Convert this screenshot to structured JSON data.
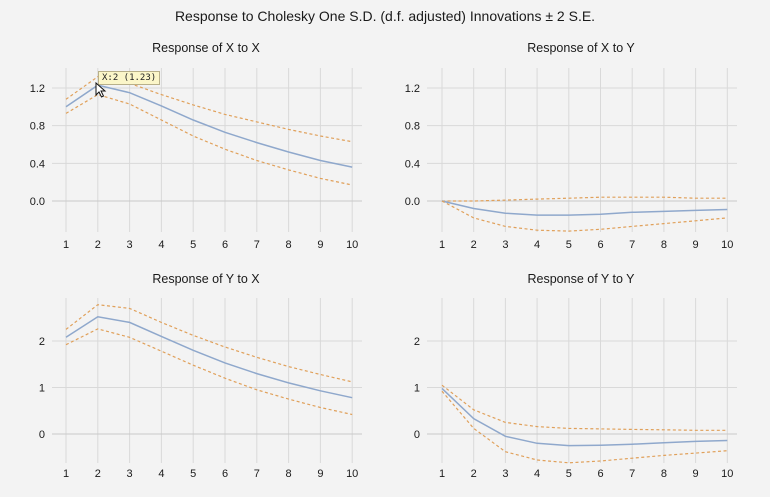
{
  "title": "Response to Cholesky One S.D. (d.f. adjusted) Innovations ± 2 S.E.",
  "tooltip": "X:2 (1.23)",
  "colors": {
    "response": "#8fa8cc",
    "band": "#e0a05a",
    "grid": "#d9d9d9"
  },
  "chart_data": [
    {
      "type": "line",
      "title": "Response of X to X",
      "x": [
        1,
        2,
        3,
        4,
        5,
        6,
        7,
        8,
        9,
        10
      ],
      "ylim": [
        -0.2,
        1.4
      ],
      "yticks": [
        0.0,
        0.4,
        0.8,
        1.2
      ],
      "ytick_labels": [
        "0.0",
        "0.4",
        "0.8",
        "1.2"
      ],
      "grid": true,
      "series": [
        {
          "role": "upper",
          "values": [
            1.08,
            1.32,
            1.25,
            1.13,
            1.02,
            0.92,
            0.84,
            0.76,
            0.69,
            0.63
          ]
        },
        {
          "role": "response",
          "values": [
            1.0,
            1.23,
            1.15,
            1.01,
            0.86,
            0.73,
            0.62,
            0.52,
            0.43,
            0.36
          ]
        },
        {
          "role": "lower",
          "values": [
            0.93,
            1.13,
            1.03,
            0.86,
            0.69,
            0.55,
            0.43,
            0.33,
            0.24,
            0.17
          ]
        }
      ]
    },
    {
      "type": "line",
      "title": "Response of X to Y",
      "x": [
        1,
        2,
        3,
        4,
        5,
        6,
        7,
        8,
        9,
        10
      ],
      "ylim": [
        -0.2,
        1.4
      ],
      "yticks": [
        0.0,
        0.4,
        0.8,
        1.2
      ],
      "ytick_labels": [
        "0.0",
        "0.4",
        "0.8",
        "1.2"
      ],
      "grid": true,
      "series": [
        {
          "role": "upper",
          "values": [
            0.0,
            0.0,
            0.01,
            0.02,
            0.03,
            0.04,
            0.04,
            0.04,
            0.03,
            0.03
          ]
        },
        {
          "role": "response",
          "values": [
            0.0,
            -0.08,
            -0.13,
            -0.15,
            -0.15,
            -0.14,
            -0.12,
            -0.11,
            -0.1,
            -0.09
          ]
        },
        {
          "role": "lower",
          "values": [
            0.0,
            -0.18,
            -0.27,
            -0.31,
            -0.32,
            -0.3,
            -0.27,
            -0.24,
            -0.21,
            -0.18
          ]
        }
      ]
    },
    {
      "type": "line",
      "title": "Response of Y to X",
      "x": [
        1,
        2,
        3,
        4,
        5,
        6,
        7,
        8,
        9,
        10
      ],
      "ylim": [
        -0.5,
        3.0
      ],
      "yticks": [
        0,
        1,
        2
      ],
      "ytick_labels": [
        "0",
        "1",
        "2"
      ],
      "grid": true,
      "series": [
        {
          "role": "upper",
          "values": [
            2.25,
            2.78,
            2.7,
            2.4,
            2.12,
            1.87,
            1.65,
            1.45,
            1.28,
            1.12
          ]
        },
        {
          "role": "response",
          "values": [
            2.08,
            2.52,
            2.4,
            2.1,
            1.8,
            1.53,
            1.3,
            1.1,
            0.93,
            0.78
          ]
        },
        {
          "role": "lower",
          "values": [
            1.92,
            2.26,
            2.08,
            1.78,
            1.48,
            1.2,
            0.95,
            0.75,
            0.57,
            0.42
          ]
        }
      ]
    },
    {
      "type": "line",
      "title": "Response of Y to Y",
      "x": [
        1,
        2,
        3,
        4,
        5,
        6,
        7,
        8,
        9,
        10
      ],
      "ylim": [
        -0.5,
        3.0
      ],
      "yticks": [
        0,
        1,
        2
      ],
      "ytick_labels": [
        "0",
        "1",
        "2"
      ],
      "grid": true,
      "series": [
        {
          "role": "upper",
          "values": [
            1.05,
            0.52,
            0.25,
            0.16,
            0.12,
            0.11,
            0.1,
            0.09,
            0.08,
            0.08
          ]
        },
        {
          "role": "response",
          "values": [
            0.98,
            0.33,
            -0.05,
            -0.2,
            -0.25,
            -0.24,
            -0.22,
            -0.19,
            -0.16,
            -0.14
          ]
        },
        {
          "role": "lower",
          "values": [
            0.92,
            0.12,
            -0.38,
            -0.56,
            -0.62,
            -0.58,
            -0.52,
            -0.46,
            -0.41,
            -0.36
          ]
        }
      ]
    }
  ]
}
